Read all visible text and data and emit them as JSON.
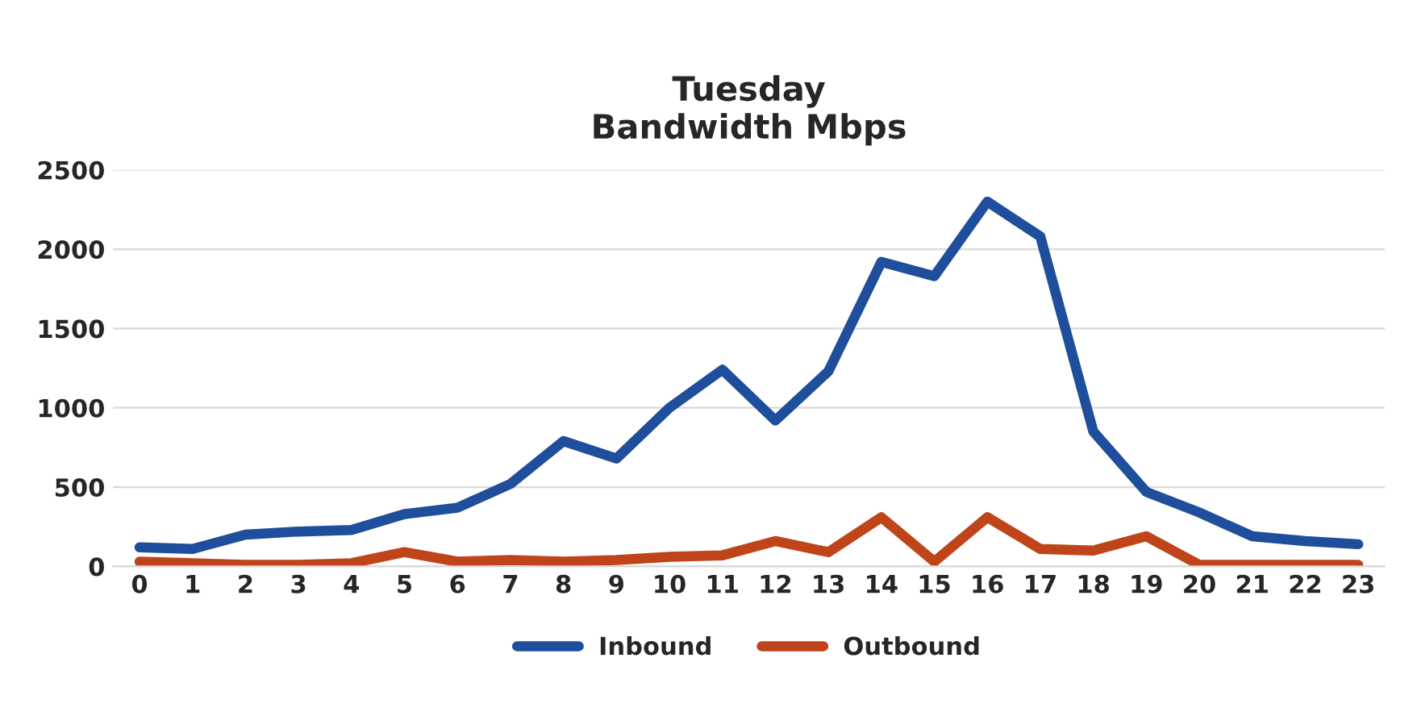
{
  "chart_data": {
    "type": "line",
    "title": "Tuesday\nBandwidth Mbps",
    "categories": [
      "0",
      "1",
      "2",
      "3",
      "4",
      "5",
      "6",
      "7",
      "8",
      "9",
      "10",
      "11",
      "12",
      "13",
      "14",
      "15",
      "16",
      "17",
      "18",
      "19",
      "20",
      "21",
      "22",
      "23"
    ],
    "series": [
      {
        "name": "Inbound",
        "color": "#1f4e9c",
        "values": [
          120,
          110,
          200,
          220,
          230,
          330,
          370,
          520,
          790,
          680,
          1000,
          1240,
          920,
          1230,
          1920,
          1830,
          2300,
          2080,
          850,
          470,
          340,
          190,
          160,
          140
        ]
      },
      {
        "name": "Outbound",
        "color": "#c0441a",
        "values": [
          30,
          20,
          10,
          10,
          20,
          90,
          30,
          40,
          30,
          40,
          60,
          70,
          160,
          90,
          310,
          30,
          310,
          110,
          100,
          190,
          10,
          10,
          10,
          10
        ]
      }
    ],
    "ylim": [
      0,
      2500
    ],
    "yticks": [
      0,
      500,
      1000,
      1500,
      2000,
      2500
    ],
    "grid": "y",
    "legend": "bottom"
  }
}
